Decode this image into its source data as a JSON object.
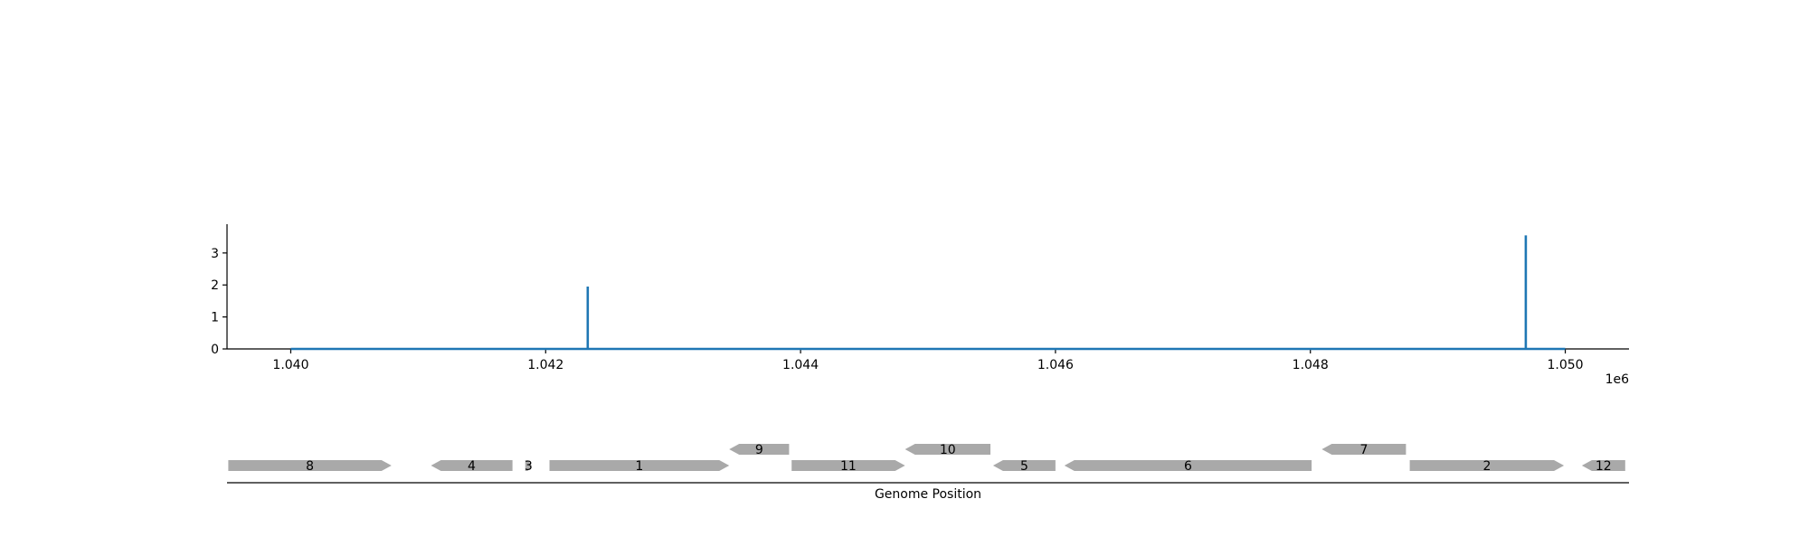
{
  "chart_data": [
    {
      "type": "line",
      "title": "",
      "xlabel": "",
      "ylabel": "",
      "x_offset_label": "1e6",
      "xlim": [
        1039500,
        1050500
      ],
      "ylim": [
        0,
        3.9
      ],
      "xticks": [
        1040000,
        1042000,
        1044000,
        1046000,
        1048000,
        1050000
      ],
      "xtick_labels": [
        "1.040",
        "1.042",
        "1.044",
        "1.046",
        "1.048",
        "1.050"
      ],
      "yticks": [
        0,
        1,
        2,
        3
      ],
      "ytick_labels": [
        "0",
        "1",
        "2",
        "3"
      ],
      "series_color": "#1f77b4",
      "series": [
        {
          "x": [
            1040000,
            1042330,
            1042330,
            1042330,
            1049690,
            1049690,
            1049690,
            1050000
          ],
          "y": [
            0,
            0,
            1.95,
            0,
            0,
            3.55,
            0,
            0
          ]
        }
      ],
      "grid": false,
      "legend": "none"
    },
    {
      "type": "gene-map",
      "xlabel": "Genome Position",
      "xlim": [
        1039500,
        1050500
      ],
      "feature_color": "#a9a9a9",
      "features": [
        {
          "label": "8",
          "start": 1039510,
          "end": 1040790,
          "strand": "+",
          "row": 0
        },
        {
          "label": "4",
          "start": 1041100,
          "end": 1041740,
          "strand": "-",
          "row": 0
        },
        {
          "label": "3",
          "start": 1041840,
          "end": 1041890,
          "strand": "+",
          "row": 0
        },
        {
          "label": "1",
          "start": 1042030,
          "end": 1043440,
          "strand": "+",
          "row": 0
        },
        {
          "label": "9",
          "start": 1043440,
          "end": 1043910,
          "strand": "-",
          "row": 1
        },
        {
          "label": "11",
          "start": 1043930,
          "end": 1044820,
          "strand": "+",
          "row": 0
        },
        {
          "label": "10",
          "start": 1044820,
          "end": 1045490,
          "strand": "-",
          "row": 1
        },
        {
          "label": "5",
          "start": 1045510,
          "end": 1046000,
          "strand": "-",
          "row": 0
        },
        {
          "label": "6",
          "start": 1046070,
          "end": 1048010,
          "strand": "-",
          "row": 0
        },
        {
          "label": "7",
          "start": 1048090,
          "end": 1048750,
          "strand": "-",
          "row": 1
        },
        {
          "label": "2",
          "start": 1048780,
          "end": 1049990,
          "strand": "+",
          "row": 0
        },
        {
          "label": "12",
          "start": 1050130,
          "end": 1050470,
          "strand": "-",
          "row": 0
        }
      ]
    }
  ]
}
